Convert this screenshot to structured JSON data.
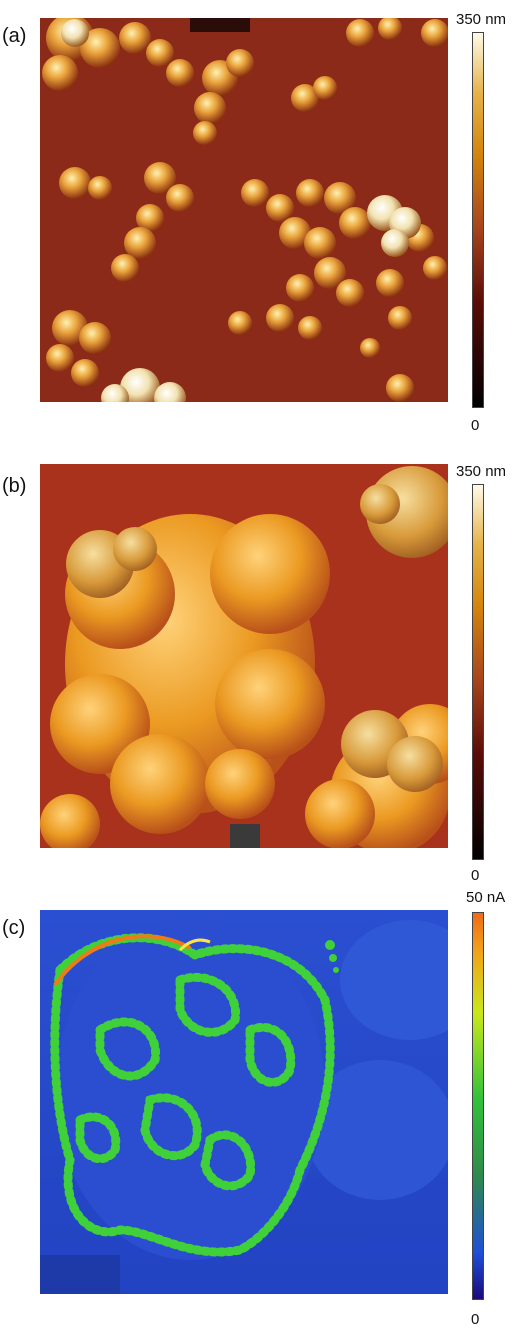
{
  "panels": [
    {
      "label": "(a)",
      "scale_max": "350 nm",
      "scale_min": "0",
      "colorbar": [
        "#000000",
        "#5a0c08",
        "#a8451c",
        "#d4860e",
        "#e6b24a",
        "#fffbe8"
      ],
      "background": "#8d2a18"
    },
    {
      "label": "(b)",
      "scale_max": "350 nm",
      "scale_min": "0",
      "colorbar": [
        "#000000",
        "#5a0c08",
        "#a8451c",
        "#d4860e",
        "#e6b24a",
        "#fffbe8"
      ],
      "background": "#a8331c"
    },
    {
      "label": "(c)",
      "scale_max": "50 nA",
      "scale_min": "0",
      "colorbar": [
        "#1a0a7a",
        "#1f4fd8",
        "#2f8a4a",
        "#32c23a",
        "#c8e81a",
        "#f2a21a",
        "#f06a18"
      ],
      "background": "#2347c9"
    }
  ]
}
